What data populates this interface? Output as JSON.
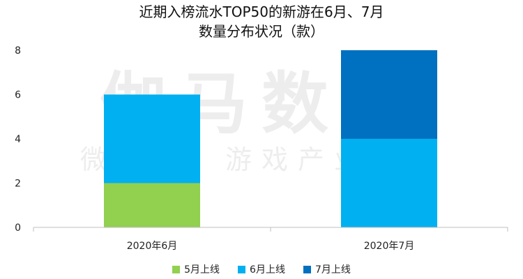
{
  "chart_data": {
    "type": "bar",
    "stacked": true,
    "title": [
      "近期入榜流水TOP50的新游在6月、7月",
      "数量分布状况（款）"
    ],
    "categories": [
      "2020年6月",
      "2020年7月"
    ],
    "series": [
      {
        "name": "5月上线",
        "values": [
          2,
          0
        ],
        "color": "#92d050"
      },
      {
        "name": "6月上线",
        "values": [
          4,
          4
        ],
        "color": "#00b0f0"
      },
      {
        "name": "7月上线",
        "values": [
          0,
          4
        ],
        "color": "#0070c0"
      }
    ],
    "ylim": [
      0,
      8
    ],
    "yticks": [
      0,
      2,
      4,
      6,
      8
    ],
    "grid": false,
    "legend_position": "bottom",
    "watermark": [
      "伽马数据",
      "微信号：游戏产业报告"
    ]
  }
}
